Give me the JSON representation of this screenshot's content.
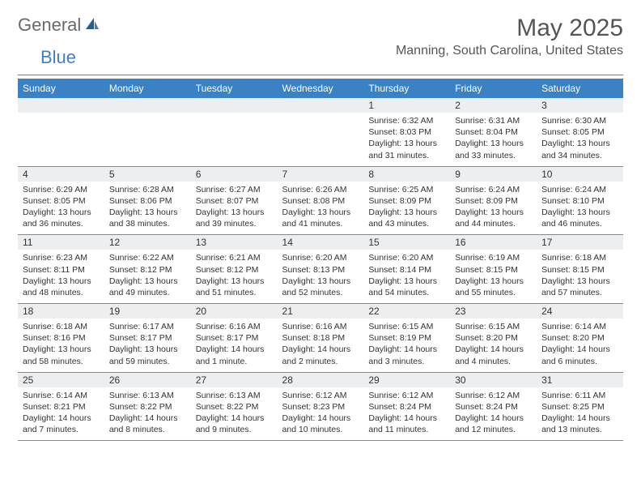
{
  "logo": {
    "part1": "General",
    "part2": "Blue"
  },
  "title": "May 2025",
  "location": "Manning, South Carolina, United States",
  "colors": {
    "header_bg": "#3b82c4",
    "header_text": "#ffffff",
    "daynum_bg": "#eceef0",
    "text": "#333333",
    "logo_gray": "#6a6a6a",
    "logo_blue": "#3b82c4"
  },
  "weekdays": [
    "Sunday",
    "Monday",
    "Tuesday",
    "Wednesday",
    "Thursday",
    "Friday",
    "Saturday"
  ],
  "weeks": [
    [
      null,
      null,
      null,
      null,
      {
        "n": "1",
        "sr": "Sunrise: 6:32 AM",
        "ss": "Sunset: 8:03 PM",
        "dl": "Daylight: 13 hours and 31 minutes."
      },
      {
        "n": "2",
        "sr": "Sunrise: 6:31 AM",
        "ss": "Sunset: 8:04 PM",
        "dl": "Daylight: 13 hours and 33 minutes."
      },
      {
        "n": "3",
        "sr": "Sunrise: 6:30 AM",
        "ss": "Sunset: 8:05 PM",
        "dl": "Daylight: 13 hours and 34 minutes."
      }
    ],
    [
      {
        "n": "4",
        "sr": "Sunrise: 6:29 AM",
        "ss": "Sunset: 8:05 PM",
        "dl": "Daylight: 13 hours and 36 minutes."
      },
      {
        "n": "5",
        "sr": "Sunrise: 6:28 AM",
        "ss": "Sunset: 8:06 PM",
        "dl": "Daylight: 13 hours and 38 minutes."
      },
      {
        "n": "6",
        "sr": "Sunrise: 6:27 AM",
        "ss": "Sunset: 8:07 PM",
        "dl": "Daylight: 13 hours and 39 minutes."
      },
      {
        "n": "7",
        "sr": "Sunrise: 6:26 AM",
        "ss": "Sunset: 8:08 PM",
        "dl": "Daylight: 13 hours and 41 minutes."
      },
      {
        "n": "8",
        "sr": "Sunrise: 6:25 AM",
        "ss": "Sunset: 8:09 PM",
        "dl": "Daylight: 13 hours and 43 minutes."
      },
      {
        "n": "9",
        "sr": "Sunrise: 6:24 AM",
        "ss": "Sunset: 8:09 PM",
        "dl": "Daylight: 13 hours and 44 minutes."
      },
      {
        "n": "10",
        "sr": "Sunrise: 6:24 AM",
        "ss": "Sunset: 8:10 PM",
        "dl": "Daylight: 13 hours and 46 minutes."
      }
    ],
    [
      {
        "n": "11",
        "sr": "Sunrise: 6:23 AM",
        "ss": "Sunset: 8:11 PM",
        "dl": "Daylight: 13 hours and 48 minutes."
      },
      {
        "n": "12",
        "sr": "Sunrise: 6:22 AM",
        "ss": "Sunset: 8:12 PM",
        "dl": "Daylight: 13 hours and 49 minutes."
      },
      {
        "n": "13",
        "sr": "Sunrise: 6:21 AM",
        "ss": "Sunset: 8:12 PM",
        "dl": "Daylight: 13 hours and 51 minutes."
      },
      {
        "n": "14",
        "sr": "Sunrise: 6:20 AM",
        "ss": "Sunset: 8:13 PM",
        "dl": "Daylight: 13 hours and 52 minutes."
      },
      {
        "n": "15",
        "sr": "Sunrise: 6:20 AM",
        "ss": "Sunset: 8:14 PM",
        "dl": "Daylight: 13 hours and 54 minutes."
      },
      {
        "n": "16",
        "sr": "Sunrise: 6:19 AM",
        "ss": "Sunset: 8:15 PM",
        "dl": "Daylight: 13 hours and 55 minutes."
      },
      {
        "n": "17",
        "sr": "Sunrise: 6:18 AM",
        "ss": "Sunset: 8:15 PM",
        "dl": "Daylight: 13 hours and 57 minutes."
      }
    ],
    [
      {
        "n": "18",
        "sr": "Sunrise: 6:18 AM",
        "ss": "Sunset: 8:16 PM",
        "dl": "Daylight: 13 hours and 58 minutes."
      },
      {
        "n": "19",
        "sr": "Sunrise: 6:17 AM",
        "ss": "Sunset: 8:17 PM",
        "dl": "Daylight: 13 hours and 59 minutes."
      },
      {
        "n": "20",
        "sr": "Sunrise: 6:16 AM",
        "ss": "Sunset: 8:17 PM",
        "dl": "Daylight: 14 hours and 1 minute."
      },
      {
        "n": "21",
        "sr": "Sunrise: 6:16 AM",
        "ss": "Sunset: 8:18 PM",
        "dl": "Daylight: 14 hours and 2 minutes."
      },
      {
        "n": "22",
        "sr": "Sunrise: 6:15 AM",
        "ss": "Sunset: 8:19 PM",
        "dl": "Daylight: 14 hours and 3 minutes."
      },
      {
        "n": "23",
        "sr": "Sunrise: 6:15 AM",
        "ss": "Sunset: 8:20 PM",
        "dl": "Daylight: 14 hours and 4 minutes."
      },
      {
        "n": "24",
        "sr": "Sunrise: 6:14 AM",
        "ss": "Sunset: 8:20 PM",
        "dl": "Daylight: 14 hours and 6 minutes."
      }
    ],
    [
      {
        "n": "25",
        "sr": "Sunrise: 6:14 AM",
        "ss": "Sunset: 8:21 PM",
        "dl": "Daylight: 14 hours and 7 minutes."
      },
      {
        "n": "26",
        "sr": "Sunrise: 6:13 AM",
        "ss": "Sunset: 8:22 PM",
        "dl": "Daylight: 14 hours and 8 minutes."
      },
      {
        "n": "27",
        "sr": "Sunrise: 6:13 AM",
        "ss": "Sunset: 8:22 PM",
        "dl": "Daylight: 14 hours and 9 minutes."
      },
      {
        "n": "28",
        "sr": "Sunrise: 6:12 AM",
        "ss": "Sunset: 8:23 PM",
        "dl": "Daylight: 14 hours and 10 minutes."
      },
      {
        "n": "29",
        "sr": "Sunrise: 6:12 AM",
        "ss": "Sunset: 8:24 PM",
        "dl": "Daylight: 14 hours and 11 minutes."
      },
      {
        "n": "30",
        "sr": "Sunrise: 6:12 AM",
        "ss": "Sunset: 8:24 PM",
        "dl": "Daylight: 14 hours and 12 minutes."
      },
      {
        "n": "31",
        "sr": "Sunrise: 6:11 AM",
        "ss": "Sunset: 8:25 PM",
        "dl": "Daylight: 14 hours and 13 minutes."
      }
    ]
  ]
}
